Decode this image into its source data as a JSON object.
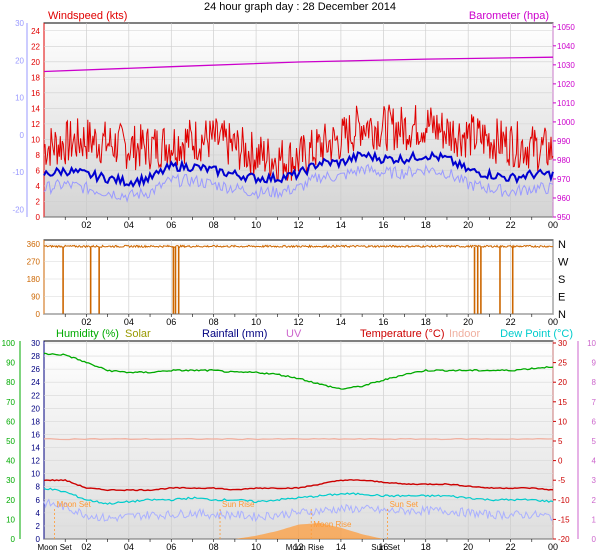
{
  "title": "24 hour graph day : 28 December 2014",
  "colors": {
    "windspeed": "#e00000",
    "windspeed_avg": "#0000d0",
    "wind_blue": "#9999ff",
    "barometer": "#cc00cc",
    "direction": "#cc6600",
    "humidity": "#00aa00",
    "solar": "#999900",
    "rainfall": "#000080",
    "uv": "#cc66cc",
    "temperature": "#cc0000",
    "indoor": "#f0b0a0",
    "dewpoint": "#00cccc",
    "sun": "#ff9933",
    "fg": "#000000"
  },
  "chart_data": [
    {
      "type": "line",
      "name": "wind",
      "labels": {
        "left": "Windspeed (kts)",
        "right": "Barometer (hpa)"
      },
      "x_ticks": [
        "02",
        "04",
        "06",
        "08",
        "10",
        "12",
        "14",
        "16",
        "18",
        "20",
        "22",
        "00"
      ],
      "y_left_ticks": [
        "24",
        "22",
        "20",
        "18",
        "16",
        "14",
        "12",
        "10",
        "8",
        "6",
        "4",
        "2",
        "0"
      ],
      "y_blue_ticks": [
        "30",
        "20",
        "10",
        "0",
        "-10",
        "-20"
      ],
      "y_right_ticks": [
        "1050",
        "1040",
        "1030",
        "1020",
        "1010",
        "1000",
        "990",
        "980",
        "970",
        "960",
        "950"
      ],
      "ylim_left": [
        0,
        25
      ],
      "ylim_right": [
        950,
        1052
      ],
      "series": [
        {
          "role": "gust",
          "x": [
            0,
            1,
            2,
            3,
            4,
            5,
            6,
            7,
            8,
            9,
            10,
            11,
            12,
            13,
            14,
            15,
            16,
            17,
            18,
            19,
            20,
            21,
            22,
            23,
            24
          ],
          "y": [
            9,
            9.5,
            10,
            9.5,
            9,
            9,
            9.5,
            10,
            10,
            9,
            8,
            7.5,
            7.5,
            9,
            10,
            12,
            11.5,
            11.5,
            12,
            11,
            10.5,
            10,
            9.5,
            9,
            8.5
          ]
        },
        {
          "role": "average",
          "x": [
            0,
            1,
            2,
            3,
            4,
            5,
            6,
            7,
            8,
            9,
            10,
            11,
            12,
            13,
            14,
            15,
            16,
            17,
            18,
            19,
            20,
            21,
            22,
            23,
            24
          ],
          "y": [
            5.5,
            6,
            5.5,
            5,
            4.5,
            5,
            6.5,
            6.5,
            6,
            5.5,
            5,
            5,
            5.5,
            7,
            7,
            8,
            7.5,
            7.5,
            8,
            7.5,
            6,
            5.5,
            5,
            5.5,
            5.5
          ]
        },
        {
          "role": "barometer",
          "x": [
            0,
            6,
            12,
            18,
            24
          ],
          "y": [
            1026.5,
            1029,
            1031.5,
            1033,
            1034
          ]
        }
      ]
    },
    {
      "type": "line",
      "name": "direction",
      "x_ticks": [
        "02",
        "04",
        "06",
        "08",
        "10",
        "12",
        "14",
        "16",
        "18",
        "20",
        "22",
        "00"
      ],
      "y_left_ticks": [
        "360",
        "270",
        "180",
        "90",
        "0"
      ],
      "y_right_ticks": [
        "N",
        "W",
        "S",
        "E",
        "N"
      ],
      "ylim": [
        0,
        360
      ],
      "series": [
        {
          "role": "direction",
          "x": [
            0,
            12,
            24
          ],
          "y": [
            348,
            348,
            348
          ]
        }
      ]
    },
    {
      "type": "line",
      "name": "climate",
      "labels": {
        "humidity": "Humidity (%)",
        "solar": "Solar",
        "rainfall": "Rainfall (mm)",
        "uv": "UV",
        "temperature": "Temperature (°C)",
        "indoor": "Indoor",
        "dewpoint": "Dew Point (°C)"
      },
      "x_ticks": [
        "02",
        "04",
        "06",
        "08",
        "10",
        "12",
        "14",
        "16",
        "18",
        "20",
        "22",
        "00"
      ],
      "y_humidity_ticks": [
        "100",
        "90",
        "80",
        "70",
        "60",
        "50",
        "40",
        "30",
        "20",
        "10",
        "0"
      ],
      "y_rain_ticks": [
        "30",
        "28",
        "26",
        "24",
        "22",
        "20",
        "18",
        "16",
        "14",
        "12",
        "10",
        "8",
        "6",
        "4",
        "2",
        "0"
      ],
      "y_temp_ticks": [
        "30",
        "25",
        "20",
        "15",
        "10",
        "5",
        "0",
        "-5",
        "-10",
        "-15",
        "-20"
      ],
      "y_uv_ticks": [
        "10",
        "9",
        "8",
        "7",
        "6",
        "5",
        "4",
        "3",
        "2",
        "1",
        "0"
      ],
      "ylim_humidity": [
        0,
        100
      ],
      "ylim_temperature": [
        -20,
        30
      ],
      "events": [
        "Moon Set",
        "Sun Rise",
        "Moon Rise",
        "Sun Set"
      ],
      "series": [
        {
          "role": "humidity",
          "x": [
            0,
            1,
            2,
            3,
            4,
            5,
            6,
            7,
            8,
            9,
            10,
            11,
            12,
            13,
            14,
            15,
            16,
            17,
            18,
            19,
            20,
            21,
            22,
            23,
            24
          ],
          "y": [
            94.5,
            94,
            90,
            86,
            85,
            85,
            86,
            86,
            86,
            85,
            85,
            84,
            82,
            79,
            76.5,
            78,
            81,
            84,
            86,
            86,
            86,
            86,
            86,
            87,
            88
          ]
        },
        {
          "role": "temperature",
          "x": [
            0,
            1,
            2,
            3,
            4,
            5,
            6,
            7,
            8,
            9,
            10,
            11,
            12,
            13,
            14,
            15,
            16,
            17,
            18,
            19,
            20,
            21,
            22,
            23,
            24
          ],
          "y": [
            -5,
            -5,
            -7,
            -7.5,
            -7.5,
            -7.5,
            -7,
            -7,
            -7,
            -7.5,
            -7,
            -7,
            -7,
            -6,
            -5,
            -5,
            -5.5,
            -6,
            -6,
            -6,
            -6.5,
            -7,
            -7,
            -7,
            -7.5
          ]
        },
        {
          "role": "dewpoint",
          "x": [
            0,
            1,
            2,
            3,
            4,
            5,
            6,
            7,
            8,
            9,
            10,
            11,
            12,
            13,
            14,
            15,
            16,
            17,
            18,
            19,
            20,
            21,
            22,
            23,
            24
          ],
          "y": [
            -7,
            -8,
            -10,
            -11,
            -10.5,
            -10,
            -10,
            -9.5,
            -10,
            -10,
            -10.5,
            -10,
            -9.5,
            -9,
            -8.5,
            -8.5,
            -9,
            -9,
            -9,
            -9,
            -9.5,
            -10,
            -10,
            -10,
            -10.5
          ]
        },
        {
          "role": "indoor",
          "x": [
            0,
            6,
            12,
            18,
            24
          ],
          "y": [
            5.5,
            5.5,
            5.5,
            5.5,
            5.5
          ]
        },
        {
          "role": "solar",
          "x": [
            9,
            10,
            11,
            12,
            13,
            14,
            15,
            16
          ],
          "y": [
            0,
            0.2,
            0.5,
            0.9,
            1.0,
            0.7,
            0.3,
            0
          ]
        }
      ]
    }
  ]
}
